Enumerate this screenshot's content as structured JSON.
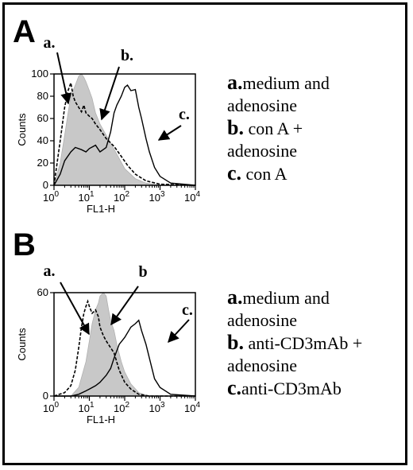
{
  "chart_data": [
    {
      "panel": "A",
      "type": "line",
      "xlabel": "FL1-H",
      "ylabel": "Counts",
      "xscale": "log",
      "xlim": [
        1,
        10000
      ],
      "ylim": [
        0,
        100
      ],
      "yticks": [
        0,
        20,
        40,
        60,
        80,
        100
      ],
      "xtick_labels": [
        "10",
        "10",
        "10",
        "10",
        "10"
      ],
      "xtick_exponents": [
        "0",
        "1",
        "2",
        "3",
        "4"
      ],
      "annotations": [
        {
          "label": "a.",
          "series": "a"
        },
        {
          "label": "b.",
          "series": "b"
        },
        {
          "label": "c.",
          "series": "c"
        }
      ],
      "legend": [
        {
          "key": "a.",
          "text": [
            "medium and",
            "adenosine"
          ]
        },
        {
          "key": "b.",
          "text": [
            " con A +",
            "adenosine"
          ]
        },
        {
          "key": "c.",
          "text": [
            " con A"
          ]
        }
      ],
      "series": [
        {
          "id": "a",
          "style": "dashed",
          "x": [
            1,
            1.5,
            2,
            2.5,
            3,
            3.5,
            4,
            5,
            6,
            7,
            8,
            10,
            12,
            15,
            20,
            30,
            50,
            80,
            120,
            200,
            400,
            1000,
            10000
          ],
          "y": [
            0,
            40,
            70,
            85,
            92,
            80,
            75,
            70,
            66,
            72,
            65,
            62,
            60,
            55,
            50,
            42,
            35,
            26,
            18,
            10,
            4,
            1,
            0
          ]
        },
        {
          "id": "b",
          "style": "filled",
          "x": [
            1,
            1.5,
            2,
            2.5,
            3,
            4,
            5,
            6,
            7,
            8,
            10,
            12,
            15,
            20,
            30,
            40,
            60,
            100,
            200,
            400,
            1000,
            10000
          ],
          "y": [
            0,
            20,
            45,
            65,
            80,
            90,
            98,
            100,
            97,
            93,
            85,
            78,
            65,
            55,
            45,
            38,
            28,
            15,
            6,
            2,
            0,
            0
          ]
        },
        {
          "id": "c",
          "style": "solid",
          "x": [
            1,
            1.5,
            2,
            3,
            4,
            6,
            8,
            10,
            15,
            20,
            30,
            40,
            50,
            60,
            80,
            100,
            120,
            150,
            200,
            250,
            300,
            400,
            500,
            700,
            1000,
            2000,
            10000
          ],
          "y": [
            0,
            10,
            22,
            30,
            34,
            32,
            30,
            33,
            36,
            30,
            34,
            48,
            65,
            72,
            80,
            88,
            90,
            85,
            86,
            70,
            60,
            42,
            30,
            16,
            8,
            2,
            0
          ]
        }
      ]
    },
    {
      "panel": "B",
      "type": "line",
      "xlabel": "FL1-H",
      "ylabel": "Counts",
      "xscale": "log",
      "xlim": [
        1,
        10000
      ],
      "ylim": [
        0,
        60
      ],
      "yticks": [
        0,
        60
      ],
      "xtick_labels": [
        "10",
        "10",
        "10",
        "10",
        "10"
      ],
      "xtick_exponents": [
        "0",
        "1",
        "2",
        "3",
        "4"
      ],
      "annotations": [
        {
          "label": "a.",
          "series": "a"
        },
        {
          "label": "b",
          "series": "b"
        },
        {
          "label": "c.",
          "series": "c"
        }
      ],
      "legend": [
        {
          "key": "a.",
          "text": [
            "medium and",
            "adenosine"
          ]
        },
        {
          "key": "b.",
          "text": [
            " anti-CD3mAb +",
            "adenosine"
          ]
        },
        {
          "key": "c.",
          "text": [
            "anti-CD3mAb"
          ]
        }
      ],
      "series": [
        {
          "id": "a",
          "style": "dashed",
          "x": [
            1,
            2,
            3,
            4,
            5,
            6,
            7,
            8,
            9,
            10,
            12,
            15,
            18,
            20,
            25,
            30,
            40,
            50,
            70,
            100,
            150,
            250,
            500,
            10000
          ],
          "y": [
            0,
            2,
            6,
            15,
            28,
            40,
            48,
            52,
            55,
            52,
            48,
            50,
            46,
            40,
            35,
            32,
            28,
            25,
            15,
            8,
            4,
            1,
            0,
            0
          ]
        },
        {
          "id": "b",
          "style": "filled",
          "x": [
            1,
            3,
            5,
            8,
            10,
            12,
            15,
            18,
            20,
            25,
            30,
            35,
            40,
            50,
            60,
            80,
            100,
            150,
            250,
            500,
            10000
          ],
          "y": [
            0,
            0,
            5,
            20,
            32,
            42,
            50,
            54,
            58,
            60,
            58,
            50,
            44,
            38,
            30,
            20,
            14,
            7,
            2,
            0,
            0
          ]
        },
        {
          "id": "c",
          "style": "solid",
          "x": [
            1,
            3,
            5,
            8,
            10,
            15,
            20,
            30,
            40,
            50,
            70,
            100,
            150,
            200,
            250,
            300,
            400,
            500,
            700,
            1000,
            2000,
            10000
          ],
          "y": [
            0,
            0,
            1,
            3,
            4,
            6,
            8,
            12,
            16,
            22,
            30,
            34,
            40,
            42,
            44,
            38,
            30,
            22,
            10,
            5,
            1,
            0
          ]
        }
      ]
    }
  ]
}
